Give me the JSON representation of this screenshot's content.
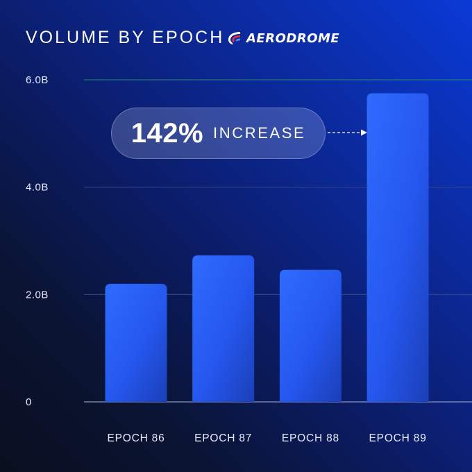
{
  "header": {
    "title": "VOLUME BY EPOCH",
    "brand_name": "AERODROME",
    "brand_icon": "aerodrome-logo-icon"
  },
  "callout": {
    "value": "142%",
    "label": "INCREASE"
  },
  "colors": {
    "bar": "#2a62ff",
    "top_gridline": "#1f8a6a",
    "gridline": "#3a4a8a",
    "axis": "#8a95b8"
  },
  "chart_data": {
    "type": "bar",
    "categories": [
      "EPOCH 86",
      "EPOCH 87",
      "EPOCH 88",
      "EPOCH 89"
    ],
    "values": [
      2.2,
      2.73,
      2.46,
      5.75
    ],
    "ylim": [
      0,
      6
    ],
    "yticks": [
      0,
      2,
      4,
      6
    ],
    "ytick_labels": [
      "0",
      "2.0B",
      "4.0B",
      "6.0B"
    ],
    "grid": true,
    "legend": "none"
  }
}
